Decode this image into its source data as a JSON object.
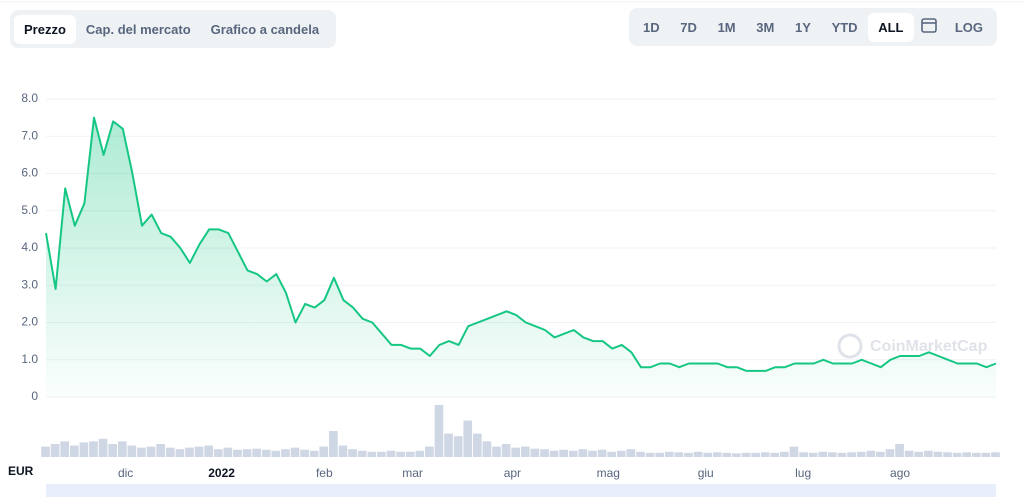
{
  "tabs": [
    "Prezzo",
    "Cap. del mercato",
    "Grafico a candela"
  ],
  "active_tab": 0,
  "ranges": [
    "1D",
    "7D",
    "1M",
    "3M",
    "1Y",
    "YTD",
    "ALL"
  ],
  "active_range": 6,
  "log_button": "LOG",
  "watermark": "CoinMarketCap",
  "chart_data": {
    "type": "line",
    "currency": "EUR",
    "series": [
      {
        "name": "Prezzo",
        "color": "#16c784",
        "values": [
          4.4,
          2.9,
          5.6,
          4.6,
          5.2,
          7.5,
          6.5,
          7.4,
          7.2,
          6.0,
          4.6,
          4.9,
          4.4,
          4.3,
          4.0,
          3.6,
          4.1,
          4.5,
          4.5,
          4.4,
          3.9,
          3.4,
          3.3,
          3.1,
          3.3,
          2.8,
          2.0,
          2.5,
          2.4,
          2.6,
          3.2,
          2.6,
          2.4,
          2.1,
          2.0,
          1.7,
          1.4,
          1.4,
          1.3,
          1.3,
          1.1,
          1.4,
          1.5,
          1.4,
          1.9,
          2.0,
          2.1,
          2.2,
          2.3,
          2.2,
          2.0,
          1.9,
          1.8,
          1.6,
          1.7,
          1.8,
          1.6,
          1.5,
          1.5,
          1.3,
          1.4,
          1.2,
          0.8,
          0.8,
          0.9,
          0.9,
          0.8,
          0.9,
          0.9,
          0.9,
          0.9,
          0.8,
          0.8,
          0.7,
          0.7,
          0.7,
          0.8,
          0.8,
          0.9,
          0.9,
          0.9,
          1.0,
          0.9,
          0.9,
          0.9,
          1.0,
          0.9,
          0.8,
          1.0,
          1.1,
          1.1,
          1.1,
          1.2,
          1.1,
          1.0,
          0.9,
          0.9,
          0.9,
          0.8,
          0.9
        ]
      },
      {
        "name": "Volume",
        "color": "#cfd6e4",
        "axis": "y2",
        "values": [
          20,
          25,
          30,
          22,
          28,
          30,
          35,
          25,
          30,
          22,
          18,
          20,
          25,
          18,
          15,
          18,
          20,
          22,
          15,
          18,
          14,
          15,
          16,
          14,
          12,
          15,
          18,
          14,
          12,
          20,
          50,
          22,
          15,
          12,
          10,
          10,
          12,
          10,
          10,
          12,
          20,
          100,
          45,
          40,
          70,
          45,
          30,
          20,
          25,
          18,
          20,
          16,
          15,
          12,
          14,
          12,
          15,
          12,
          14,
          10,
          12,
          15,
          10,
          8,
          8,
          10,
          9,
          8,
          10,
          8,
          9,
          8,
          7,
          8,
          8,
          9,
          8,
          10,
          20,
          9,
          8,
          10,
          9,
          8,
          9,
          10,
          12,
          10,
          15,
          25,
          12,
          10,
          12,
          10,
          9,
          8,
          9,
          8,
          8,
          9
        ]
      }
    ],
    "xlim": [
      0,
      99
    ],
    "xticks": [
      {
        "value": 8.3,
        "label": "dic"
      },
      {
        "value": 18.3,
        "label": "2022"
      },
      {
        "value": 29,
        "label": "feb"
      },
      {
        "value": 38.2,
        "label": "mar"
      },
      {
        "value": 48.6,
        "label": "apr"
      },
      {
        "value": 58.6,
        "label": "mag"
      },
      {
        "value": 68.75,
        "label": "giu"
      },
      {
        "value": 78.9,
        "label": "lug"
      },
      {
        "value": 89,
        "label": "ago"
      }
    ],
    "ylim": [
      0,
      8.5
    ],
    "yticks": [
      0,
      {
        "value": 1,
        "label": "1.0"
      },
      {
        "value": 2,
        "label": "2.0"
      },
      {
        "value": 3,
        "label": "3.0"
      },
      {
        "value": 4,
        "label": "4.0"
      },
      {
        "value": 5,
        "label": "5.0"
      },
      {
        "value": 6,
        "label": "6.0"
      },
      {
        "value": 7,
        "label": "7.0"
      },
      {
        "value": 8,
        "label": "8.0"
      }
    ],
    "y2lim": [
      0,
      100
    ],
    "grid": true
  }
}
